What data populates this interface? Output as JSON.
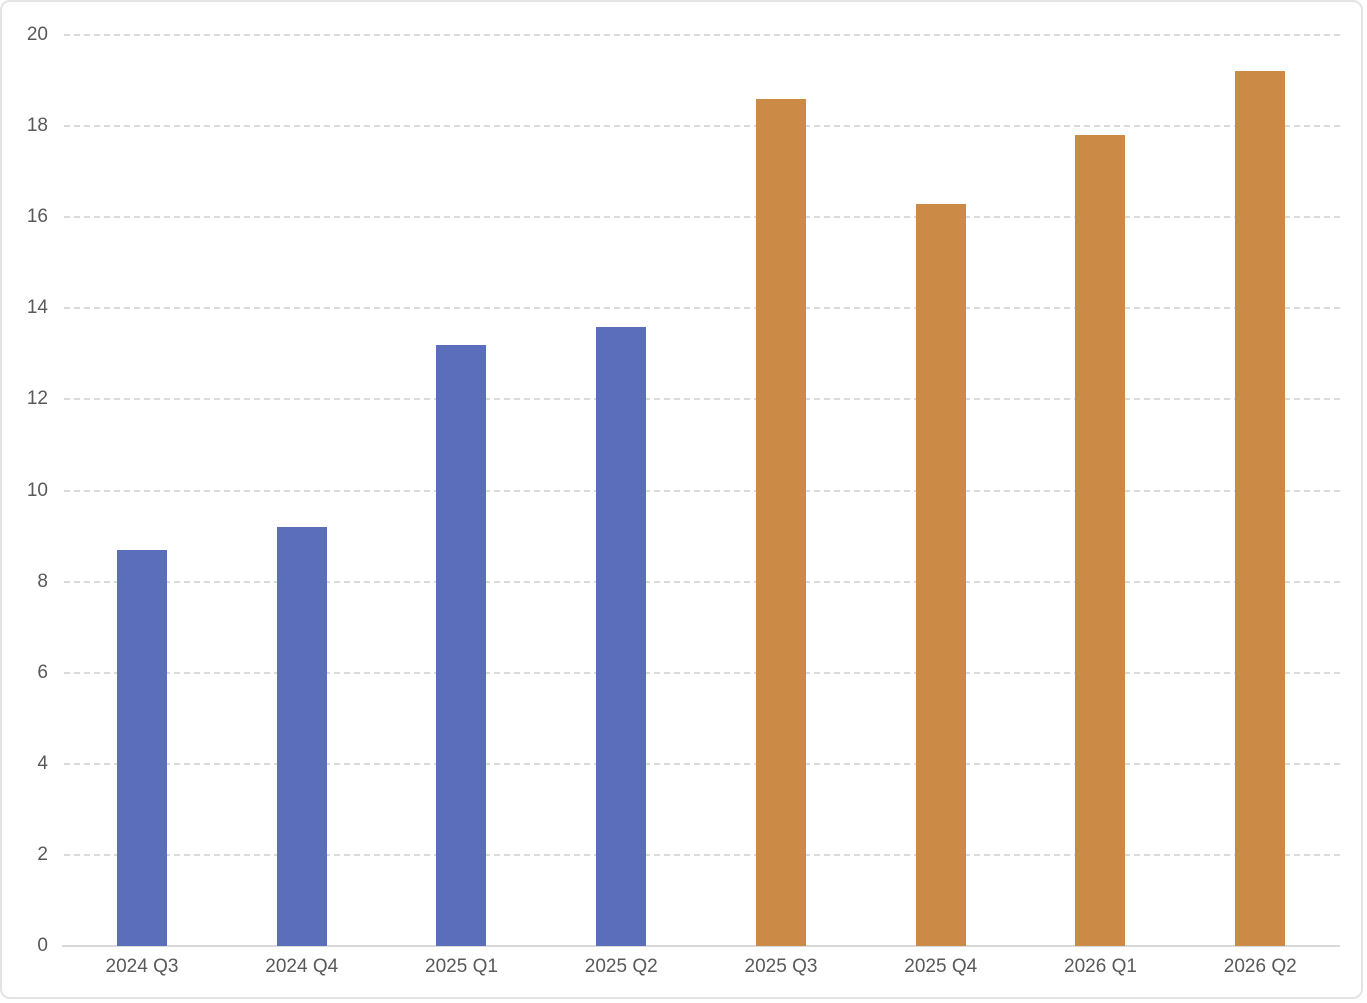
{
  "chart_data": {
    "type": "bar",
    "categories": [
      "2024 Q3",
      "2024 Q4",
      "2025 Q1",
      "2025 Q2",
      "2025 Q3",
      "2025 Q4",
      "2026 Q1",
      "2026 Q2"
    ],
    "values": [
      8.7,
      9.2,
      13.2,
      13.6,
      18.6,
      16.3,
      17.8,
      19.2
    ],
    "bar_colors": [
      "#5B6EBC",
      "#5B6EBC",
      "#5B6EBC",
      "#5B6EBC",
      "#CB8B46",
      "#CB8B46",
      "#CB8B46",
      "#CB8B46"
    ],
    "title": "",
    "xlabel": "",
    "ylabel": "",
    "ylim": [
      0,
      20
    ],
    "yticks": [
      0,
      2,
      4,
      6,
      8,
      10,
      12,
      14,
      16,
      18,
      20
    ],
    "grid": "horizontal-dashed",
    "legend": false
  },
  "colors": {
    "series_blue": "#5B6EBC",
    "series_orange": "#CB8B46",
    "gridline": "#DBDBDB",
    "axis_line": "#D9D9D9",
    "tick_text": "#595959",
    "chart_border": "#E4E4E4",
    "background": "#FFFFFF"
  }
}
